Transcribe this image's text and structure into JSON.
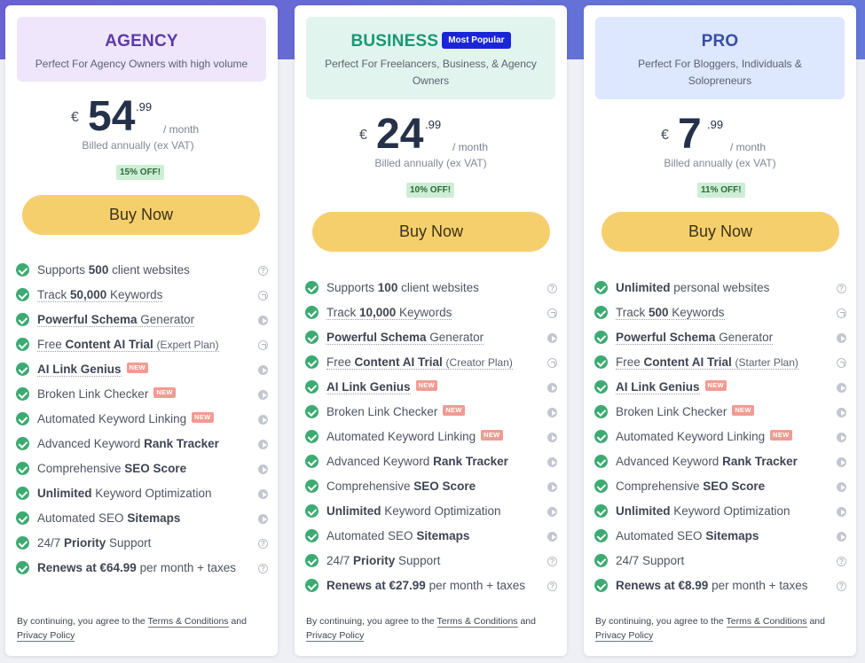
{
  "plans": [
    {
      "name": "AGENCY",
      "description": "Perfect For Agency Owners with high volume",
      "currency": "€",
      "price_whole": "54",
      "price_cents": ".99",
      "period": "/ month",
      "billed": "Billed annually (ex VAT)",
      "discount": "15% OFF!",
      "buy_label": "Buy Now",
      "features": [
        {
          "pre": "Supports ",
          "bold": "500",
          "post": " client websites",
          "icon": "question-icon"
        },
        {
          "pre": "Track ",
          "bold": "50,000",
          "post": " Keywords",
          "icon": "arrow-icon"
        },
        {
          "pre": "",
          "bold": "Powerful Schema",
          "post": " Generator",
          "icon": "play-icon"
        },
        {
          "pre": "Free ",
          "bold": "Content AI Trial",
          "post": "",
          "small": "(Expert Plan)",
          "icon": "arrow-icon"
        },
        {
          "pre": "",
          "bold": "AI Link Genius",
          "post": "",
          "new": "NEW",
          "icon": "play-icon"
        },
        {
          "pre": "Broken Link Checker",
          "bold": "",
          "post": "",
          "new": "NEW",
          "icon": "play-icon"
        },
        {
          "pre": "Automated Keyword Linking",
          "bold": "",
          "post": "",
          "new": "NEW",
          "icon": "play-icon"
        },
        {
          "pre": "Advanced Keyword ",
          "bold": "Rank Tracker",
          "post": "",
          "icon": "play-icon"
        },
        {
          "pre": "Comprehensive ",
          "bold": "SEO Score",
          "post": "",
          "icon": "play-icon"
        },
        {
          "pre": "",
          "bold": "Unlimited",
          "post": " Keyword Optimization",
          "icon": "play-icon"
        },
        {
          "pre": "Automated SEO ",
          "bold": "Sitemaps",
          "post": "",
          "icon": "play-icon"
        },
        {
          "pre": "24/7 ",
          "bold": "Priority",
          "post": " Support",
          "icon": "question-icon"
        },
        {
          "pre": "",
          "bold": "Renews at €64.99",
          "post": " per month + taxes",
          "icon": "question-icon"
        }
      ]
    },
    {
      "name": "BUSINESS",
      "badge": "Most Popular",
      "description": "Perfect For Freelancers, Business, & Agency Owners",
      "currency": "€",
      "price_whole": "24",
      "price_cents": ".99",
      "period": "/ month",
      "billed": "Billed annually (ex VAT)",
      "discount": "10% OFF!",
      "buy_label": "Buy Now",
      "features": [
        {
          "pre": "Supports ",
          "bold": "100",
          "post": " client websites",
          "icon": "question-icon"
        },
        {
          "pre": "Track ",
          "bold": "10,000",
          "post": " Keywords",
          "icon": "arrow-icon"
        },
        {
          "pre": "",
          "bold": "Powerful Schema",
          "post": " Generator",
          "icon": "play-icon"
        },
        {
          "pre": "Free ",
          "bold": "Content AI Trial",
          "post": "",
          "small": "(Creator Plan)",
          "icon": "arrow-icon"
        },
        {
          "pre": "",
          "bold": "AI Link Genius",
          "post": "",
          "new": "NEW",
          "icon": "play-icon"
        },
        {
          "pre": "Broken Link Checker",
          "bold": "",
          "post": "",
          "new": "NEW",
          "icon": "play-icon"
        },
        {
          "pre": "Automated Keyword Linking",
          "bold": "",
          "post": "",
          "new": "NEW",
          "icon": "play-icon"
        },
        {
          "pre": "Advanced Keyword ",
          "bold": "Rank Tracker",
          "post": "",
          "icon": "play-icon"
        },
        {
          "pre": "Comprehensive ",
          "bold": "SEO Score",
          "post": "",
          "icon": "play-icon"
        },
        {
          "pre": "",
          "bold": "Unlimited",
          "post": " Keyword Optimization",
          "icon": "play-icon"
        },
        {
          "pre": "Automated SEO ",
          "bold": "Sitemaps",
          "post": "",
          "icon": "play-icon"
        },
        {
          "pre": "24/7 ",
          "bold": "Priority",
          "post": " Support",
          "icon": "question-icon"
        },
        {
          "pre": "",
          "bold": "Renews at €27.99",
          "post": " per month + taxes",
          "icon": "question-icon"
        }
      ]
    },
    {
      "name": "PRO",
      "description": "Perfect For Bloggers, Individuals & Solopreneurs",
      "currency": "€",
      "price_whole": "7",
      "price_cents": ".99",
      "period": "/ month",
      "billed": "Billed annually (ex VAT)",
      "discount": "11% OFF!",
      "buy_label": "Buy Now",
      "features": [
        {
          "pre": "",
          "bold": "Unlimited",
          "post": " personal websites",
          "icon": "question-icon"
        },
        {
          "pre": "Track ",
          "bold": "500",
          "post": " Keywords",
          "icon": "arrow-icon"
        },
        {
          "pre": "",
          "bold": "Powerful Schema",
          "post": " Generator",
          "icon": "play-icon"
        },
        {
          "pre": "Free ",
          "bold": "Content AI Trial",
          "post": "",
          "small": "(Starter Plan)",
          "icon": "arrow-icon"
        },
        {
          "pre": "",
          "bold": "AI Link Genius",
          "post": "",
          "new": "NEW",
          "icon": "play-icon"
        },
        {
          "pre": "Broken Link Checker",
          "bold": "",
          "post": "",
          "new": "NEW",
          "icon": "play-icon"
        },
        {
          "pre": "Automated Keyword Linking",
          "bold": "",
          "post": "",
          "new": "NEW",
          "icon": "play-icon"
        },
        {
          "pre": "Advanced Keyword ",
          "bold": "Rank Tracker",
          "post": "",
          "icon": "play-icon"
        },
        {
          "pre": "Comprehensive ",
          "bold": "SEO Score",
          "post": "",
          "icon": "play-icon"
        },
        {
          "pre": "",
          "bold": "Unlimited",
          "post": " Keyword Optimization",
          "icon": "play-icon"
        },
        {
          "pre": "Automated SEO ",
          "bold": "Sitemaps",
          "post": "",
          "icon": "play-icon"
        },
        {
          "pre": "24/7 Support",
          "bold": "",
          "post": "",
          "icon": "question-icon"
        },
        {
          "pre": "",
          "bold": "Renews at €8.99",
          "post": " per month + taxes",
          "icon": "question-icon"
        }
      ]
    }
  ],
  "terms": {
    "prefix": "By continuing, you agree to the ",
    "terms_link": "Terms & Conditions",
    "and": " and",
    "privacy_link": "Privacy Policy"
  },
  "colors": {
    "header_band": "#6a62d2",
    "buy_button": "#f6cf6d",
    "check": "#3cab72",
    "popular_badge": "#1b25d8",
    "new_tag": "#f29b92"
  }
}
